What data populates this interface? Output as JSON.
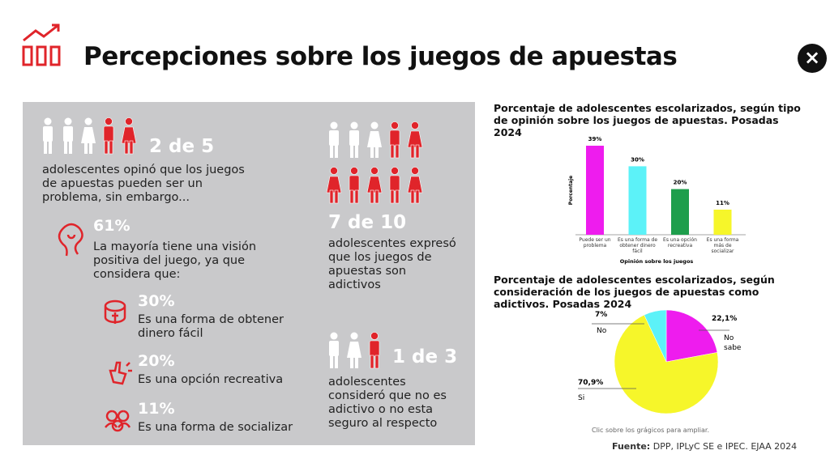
{
  "header": {
    "title": "Percepciones sobre los juegos de apuestas",
    "close": "×"
  },
  "left_panel": {
    "stat1": {
      "value": "2 de 5",
      "text": "adolescentes opinó que los juegos de apuestas pueden ser un problema, sin embargo..."
    },
    "stat2": {
      "value": "61%",
      "text": "La mayoría tiene una visión positiva del juego, ya que considera que:"
    },
    "reasons": [
      {
        "value": "30%",
        "text": "Es una forma de obtener dinero fácil"
      },
      {
        "value": "20%",
        "text": "Es una opción recreativa"
      },
      {
        "value": "11%",
        "text": "Es una forma de socializar"
      }
    ],
    "stat3": {
      "value": "7 de 10",
      "text": "adolescentes expresó que los juegos de apuestas son adictivos"
    },
    "stat4": {
      "value": "1 de 3",
      "text": "adolescentes consideró que no es adictivo o no esta seguro al respecto"
    }
  },
  "chart_data": [
    {
      "type": "bar",
      "title": "Porcentaje de adolescentes escolarizados, según tipo de opinión sobre los juegos de apuestas. Posadas 2024",
      "y_label": "Porcentaje",
      "x_label": "Opinión sobre los juegos",
      "categories": [
        "Puede ser un problema",
        "Es una forma de obtener dinero fácil",
        "Es una opción recreativa",
        "Es una forma más de socializar"
      ],
      "values": [
        39,
        30,
        20,
        11
      ],
      "value_labels": [
        "39%",
        "30%",
        "20%",
        "11%"
      ],
      "colors": [
        "#ee1cee",
        "#5cf2f8",
        "#1e9e4c",
        "#f6f62a"
      ]
    },
    {
      "type": "pie",
      "title": "Porcentaje de adolescentes escolarizados, según consideración de los juegos de apuestas como adictivos. Posadas 2024",
      "categories": [
        "No sabe",
        "Si",
        "No"
      ],
      "values": [
        22.1,
        70.9,
        7
      ],
      "value_labels": [
        "22,1%",
        "70,9%",
        "7%"
      ],
      "colors": [
        "#ee1cee",
        "#f6f62a",
        "#5cf2f8"
      ]
    }
  ],
  "note": "Clic sobre los grágicos para ampliar.",
  "source": {
    "label": "Fuente:",
    "text": "DPP, IPLyC SE e IPEC. EJAA 2024"
  }
}
